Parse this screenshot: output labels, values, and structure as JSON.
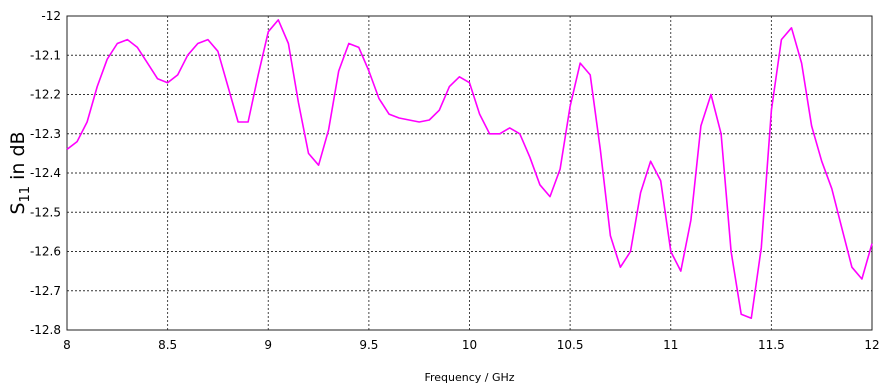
{
  "chart_data": {
    "type": "line",
    "title": "",
    "xlabel": "Frequency / GHz",
    "ylabel": {
      "main": "S",
      "subscript": "11",
      "suffix": " in dB"
    },
    "xlim": [
      8,
      12
    ],
    "ylim": [
      -12.8,
      -12
    ],
    "xticks": [
      8,
      8.5,
      9,
      9.5,
      10,
      10.5,
      11,
      11.5,
      12
    ],
    "xtick_labels": [
      "8",
      "8.5",
      "9",
      "9.5",
      "10",
      "10.5",
      "11",
      "11.5",
      "12"
    ],
    "yticks": [
      -12,
      -12.1,
      -12.2,
      -12.3,
      -12.4,
      -12.5,
      -12.6,
      -12.7,
      -12.8
    ],
    "ytick_labels": [
      "-12",
      "-12.1",
      "-12.2",
      "-12.3",
      "-12.4",
      "-12.5",
      "-12.6",
      "-12.7",
      "-12.8"
    ],
    "grid": true,
    "line_color": "#ff00ff",
    "series": [
      {
        "x": [
          8.0,
          8.05,
          8.1,
          8.15,
          8.2,
          8.25,
          8.3,
          8.35,
          8.4,
          8.45,
          8.5,
          8.55,
          8.6,
          8.65,
          8.7,
          8.75,
          8.8,
          8.85,
          8.9,
          8.95,
          9.0,
          9.05,
          9.1,
          9.15,
          9.2,
          9.25,
          9.3,
          9.35,
          9.4,
          9.45,
          9.5,
          9.55,
          9.6,
          9.65,
          9.7,
          9.75,
          9.8,
          9.85,
          9.9,
          9.95,
          10.0,
          10.05,
          10.1,
          10.15,
          10.2,
          10.25,
          10.3,
          10.35,
          10.4,
          10.45,
          10.5,
          10.55,
          10.6,
          10.65,
          10.7,
          10.75,
          10.8,
          10.85,
          10.9,
          10.95,
          11.0,
          11.05,
          11.1,
          11.15,
          11.2,
          11.25,
          11.3,
          11.35,
          11.4,
          11.45,
          11.5,
          11.55,
          11.6,
          11.65,
          11.7,
          11.75,
          11.8,
          11.85,
          11.9,
          11.95,
          12.0
        ],
        "y": [
          -12.34,
          -12.32,
          -12.27,
          -12.18,
          -12.11,
          -12.07,
          -12.06,
          -12.08,
          -12.12,
          -12.16,
          -12.17,
          -12.15,
          -12.1,
          -12.07,
          -12.06,
          -12.09,
          -12.18,
          -12.27,
          -12.27,
          -12.15,
          -12.04,
          -12.01,
          -12.07,
          -12.22,
          -12.35,
          -12.38,
          -12.29,
          -12.14,
          -12.07,
          -12.08,
          -12.14,
          -12.21,
          -12.25,
          -12.26,
          -12.265,
          -12.27,
          -12.265,
          -12.24,
          -12.18,
          -12.155,
          -12.17,
          -12.25,
          -12.3,
          -12.3,
          -12.285,
          -12.3,
          -12.36,
          -12.43,
          -12.46,
          -12.39,
          -12.23,
          -12.12,
          -12.15,
          -12.34,
          -12.56,
          -12.64,
          -12.6,
          -12.45,
          -12.37,
          -12.42,
          -12.6,
          -12.65,
          -12.52,
          -12.28,
          -12.2,
          -12.3,
          -12.6,
          -12.76,
          -12.77,
          -12.59,
          -12.24,
          -12.06,
          -12.03,
          -12.12,
          -12.28,
          -12.37,
          -12.44,
          -12.54,
          -12.64,
          -12.67,
          -12.58
        ]
      }
    ]
  }
}
